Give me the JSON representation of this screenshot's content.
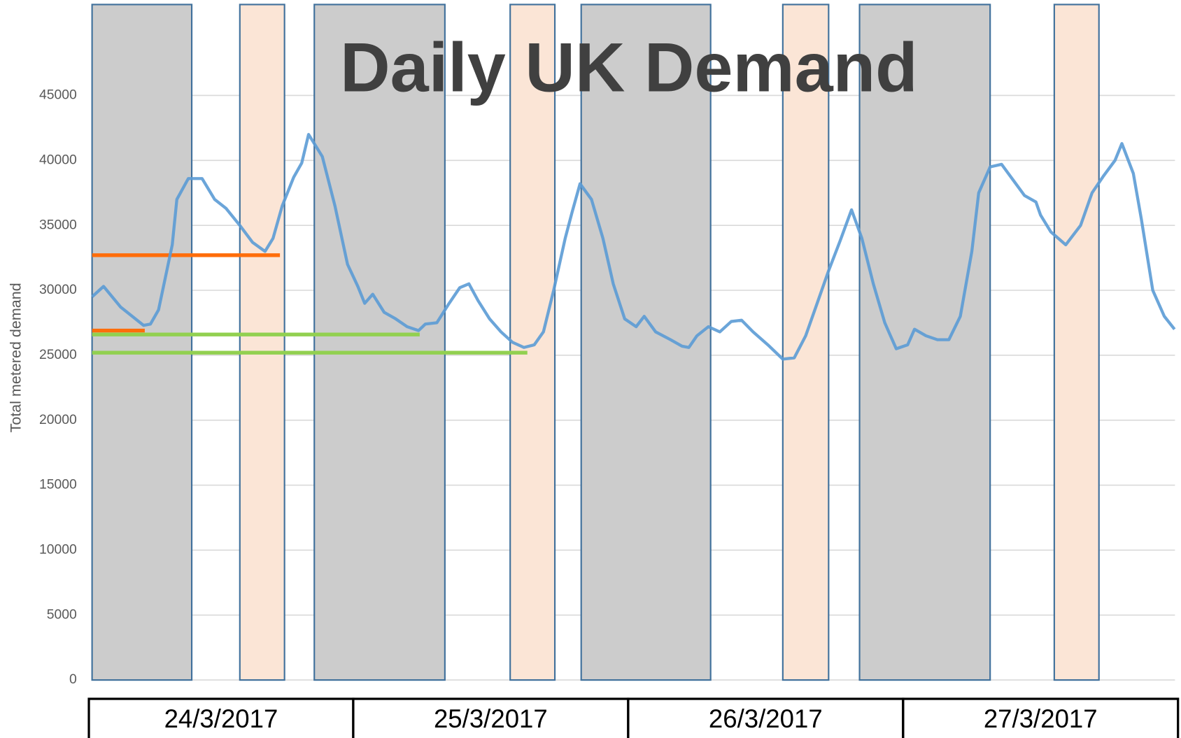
{
  "chart_data": {
    "type": "line",
    "title": "Daily UK Demand",
    "y_label": "Total metered demand",
    "days": [
      "24/3/2017",
      "25/3/2017",
      "26/3/2017",
      "27/3/2017"
    ],
    "xlim": [
      0,
      96
    ],
    "ylim": [
      0,
      52000
    ],
    "yticks": [
      0,
      5000,
      10000,
      15000,
      20000,
      25000,
      30000,
      35000,
      40000,
      45000
    ],
    "grid": true,
    "series": [
      {
        "name": "Total metered demand",
        "color": "#5b9bd5",
        "x": [
          1.2,
          2.2,
          3.7,
          5.7,
          6.3,
          7,
          7.6,
          8.2,
          8.6,
          9.6,
          10.8,
          11.9,
          12.9,
          14.1,
          15.2,
          16.3,
          17,
          17.8,
          18.8,
          19.5,
          20.1,
          21.3,
          22.4,
          23.5,
          24.4,
          25,
          25.7,
          26.7,
          27.7,
          28.7,
          29.7,
          30.3,
          31.3,
          32.3,
          33.3,
          34.1,
          34.9,
          35.9,
          36.9,
          37.9,
          38.9,
          39.8,
          40.6,
          41.5,
          42.5,
          43.1,
          43.8,
          44.8,
          45.8,
          46.7,
          47.7,
          48.7,
          49.4,
          50.4,
          51.7,
          52.7,
          53.3,
          54,
          55,
          56,
          57,
          57.9,
          58.9,
          60.2,
          61.5,
          62.5,
          63.5,
          64.5,
          65.5,
          66.5,
          67.5,
          68.4,
          69.4,
          70.4,
          71.4,
          72.4,
          73,
          74,
          75,
          76,
          77,
          78,
          78.6,
          79.6,
          80.6,
          81.6,
          82.6,
          83.6,
          84,
          84.9,
          86.2,
          87.5,
          88.5,
          89.5,
          90.5,
          91.1,
          92.1,
          92.8,
          93.8,
          94.8,
          95.7
        ],
        "values": [
          29500,
          30300,
          28700,
          27300,
          27400,
          28500,
          31000,
          33500,
          37000,
          38600,
          38600,
          37000,
          36300,
          35000,
          33700,
          33000,
          34000,
          36500,
          38700,
          39800,
          42000,
          40300,
          36500,
          32000,
          30300,
          29000,
          29700,
          28300,
          27800,
          27200,
          26900,
          27400,
          27500,
          28900,
          30200,
          30500,
          29200,
          27800,
          26800,
          26000,
          25600,
          25800,
          26800,
          30000,
          34000,
          36000,
          38200,
          37000,
          34000,
          30500,
          27800,
          27200,
          28000,
          26800,
          26200,
          25700,
          25600,
          26500,
          27200,
          26800,
          27600,
          27700,
          26800,
          25800,
          24700,
          24800,
          26500,
          29000,
          31500,
          33800,
          36200,
          34000,
          30500,
          27500,
          25500,
          25800,
          27000,
          26500,
          26200,
          26200,
          28000,
          33000,
          37500,
          39500,
          39700,
          38500,
          37300,
          36800,
          35800,
          34500,
          33500,
          35000,
          37500,
          38800,
          40000,
          41300,
          39000,
          35500,
          30000,
          28000,
          27000
        ]
      }
    ],
    "bands": [
      {
        "color": "#cccccc",
        "x": [
          1.2,
          9.9
        ]
      },
      {
        "color": "#fbe5d6",
        "x": [
          14.1,
          18
        ]
      },
      {
        "color": "#cccccc",
        "x": [
          20.6,
          32
        ]
      },
      {
        "color": "#fbe5d6",
        "x": [
          37.7,
          41.6
        ]
      },
      {
        "color": "#cccccc",
        "x": [
          43.9,
          55.2
        ]
      },
      {
        "color": "#fbe5d6",
        "x": [
          61.5,
          65.5
        ]
      },
      {
        "color": "#cccccc",
        "x": [
          68.2,
          79.6
        ]
      },
      {
        "color": "#fbe5d6",
        "x": [
          85.2,
          89.1
        ]
      }
    ],
    "segments": [
      {
        "color": "#ff6d0a",
        "y": 32700,
        "x": [
          1.2,
          17.6
        ]
      },
      {
        "color": "#ff6d0a",
        "y": 26900,
        "x": [
          1.2,
          5.8
        ]
      },
      {
        "color": "#92d050",
        "y": 26600,
        "x": [
          1.2,
          29.8
        ]
      },
      {
        "color": "#92d050",
        "y": 25200,
        "x": [
          1.2,
          39.2
        ]
      }
    ]
  }
}
